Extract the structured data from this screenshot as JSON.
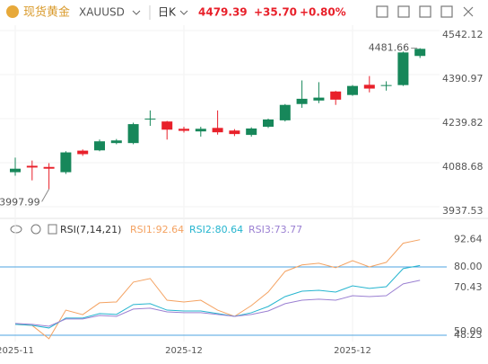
{
  "chart_data": [
    {
      "type": "candlestick",
      "title": "现货黄金",
      "symbol": "XAUUSD",
      "period": "日K",
      "change": "+35.70",
      "change_pct": "+0.80%",
      "categories": [
        "2025-11",
        null,
        null,
        null,
        null,
        null,
        null,
        null,
        null,
        null,
        "2025-12",
        null,
        null,
        null,
        null,
        null,
        null,
        null,
        null,
        null,
        "2025-12",
        null,
        null,
        null,
        null
      ],
      "open": [
        4056,
        4078,
        4074,
        4056,
        4130,
        4131,
        4156,
        4156,
        4238,
        4230,
        4205,
        4196,
        4208,
        4199,
        4184,
        4212,
        4234,
        4290,
        4302,
        4333,
        4321,
        4356,
        4353,
        4355,
        4455
      ],
      "high": [
        4106,
        4096,
        4087,
        4128,
        4134,
        4168,
        4170,
        4226,
        4268,
        4232,
        4212,
        4212,
        4268,
        4204,
        4210,
        4240,
        4290,
        4371,
        4365,
        4335,
        4355,
        4386,
        4368,
        4470,
        4481.66
      ],
      "low": [
        4044,
        4028,
        3997.99,
        4050,
        4112,
        4128,
        4152,
        4152,
        4215,
        4168,
        4192,
        4178,
        4185,
        4180,
        4178,
        4208,
        4230,
        4277,
        4293,
        4287,
        4318,
        4330,
        4336,
        4352,
        4448
      ],
      "close": [
        4068,
        4072,
        4068,
        4124,
        4118,
        4162,
        4165,
        4221,
        4240,
        4202,
        4198,
        4205,
        4193,
        4187,
        4206,
        4237,
        4287,
        4308,
        4312,
        4305,
        4352,
        4343,
        4355,
        4467,
        4479.39
      ],
      "up_color": "#17875a",
      "down_color": "#e8202a",
      "ylim": [
        3937.53,
        4542.12
      ],
      "yticks": [
        4542.12,
        4390.97,
        4239.82,
        4088.68,
        3937.53
      ],
      "grid": true
    },
    {
      "type": "line",
      "title": "RSI(7,14,21)",
      "series": [
        {
          "name": "RSI1:92.64",
          "color": "#f4a261",
          "values": [
            53.3,
            52.8,
            46.6,
            59.9,
            57.8,
            63.3,
            63.7,
            72.9,
            74.6,
            64.5,
            63.7,
            64.5,
            59.9,
            57.0,
            62.0,
            68.3,
            77.9,
            80.9,
            81.7,
            79.6,
            82.9,
            80.0,
            82.1,
            91.0,
            92.64
          ]
        },
        {
          "name": "RSI2:80.64",
          "color": "#26b5cf",
          "values": [
            53.3,
            52.8,
            51.6,
            56.2,
            56.2,
            58.3,
            57.9,
            62.5,
            62.9,
            59.9,
            59.5,
            59.5,
            58.3,
            57.0,
            58.7,
            61.6,
            66.2,
            68.7,
            69.1,
            68.3,
            71.2,
            70.0,
            70.8,
            79.2,
            80.64
          ]
        },
        {
          "name": "RSI3:73.77",
          "color": "#9b80d2",
          "values": [
            53.7,
            53.3,
            52.4,
            55.8,
            55.8,
            57.4,
            57.0,
            60.4,
            60.8,
            59.1,
            58.7,
            58.7,
            57.9,
            57.0,
            57.9,
            59.5,
            62.9,
            64.5,
            65.0,
            64.5,
            66.6,
            66.2,
            66.6,
            72.1,
            73.77
          ]
        }
      ],
      "ylim": [
        45.3,
        94.6
      ],
      "yticks": [
        92.64,
        {
          "value": 80,
          "label": "80.00"
        },
        70.43,
        {
          "value": 50,
          "label": "50.00"
        },
        48.23
      ],
      "reference_lines": [
        80,
        48.23
      ],
      "reference_color": "#4da3e0"
    }
  ]
}
